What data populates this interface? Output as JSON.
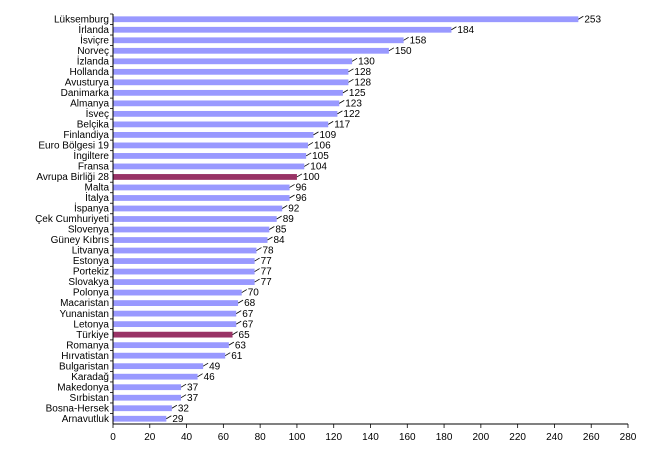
{
  "colors": {
    "default_bar": "#9999ff",
    "highlight_bar": "#993366",
    "axis": "#000000",
    "background": "#ffffff"
  },
  "chart_data": {
    "type": "bar",
    "orientation": "horizontal",
    "categories": [
      "Lüksemburg",
      "İrlanda",
      "İsviçre",
      "Norveç",
      "İzlanda",
      "Hollanda",
      "Avusturya",
      "Danimarka",
      "Almanya",
      "İsveç",
      "Belçika",
      "Finlandiya",
      "Euro Bölgesi 19",
      "İngiltere",
      "Fransa",
      "Avrupa Birliği 28",
      "Malta",
      "İtalya",
      "İspanya",
      "Çek Cumhuriyeti",
      "Slovenya",
      "Güney Kıbrıs",
      "Litvanya",
      "Estonya",
      "Portekiz",
      "Slovakya",
      "Polonya",
      "Macaristan",
      "Yunanistan",
      "Letonya",
      "Türkiye",
      "Romanya",
      "Hırvatistan",
      "Bulgaristan",
      "Karadağ",
      "Makedonya",
      "Sırbistan",
      "Bosna-Hersek",
      "Arnavutluk"
    ],
    "values": [
      253,
      184,
      158,
      150,
      130,
      128,
      128,
      125,
      123,
      122,
      117,
      109,
      106,
      105,
      104,
      100,
      96,
      96,
      92,
      89,
      85,
      84,
      78,
      77,
      77,
      77,
      70,
      68,
      67,
      67,
      65,
      63,
      61,
      49,
      46,
      37,
      37,
      32,
      29
    ],
    "highlighted": [
      "Avrupa Birliği 28",
      "Türkiye"
    ],
    "x_ticks": [
      0,
      20,
      40,
      60,
      80,
      100,
      120,
      140,
      160,
      180,
      200,
      220,
      240,
      260,
      280
    ],
    "xlim": [
      0,
      280
    ],
    "title": "",
    "xlabel": "",
    "ylabel": "",
    "grid": false,
    "data_labels": true
  }
}
